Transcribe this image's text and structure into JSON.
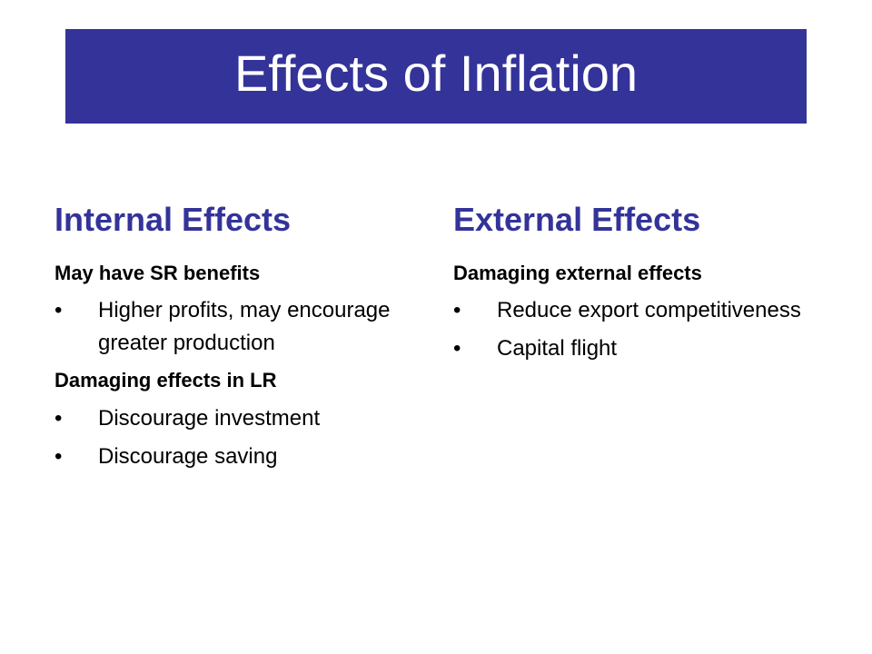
{
  "slide": {
    "title": "Effects of Inflation",
    "colors": {
      "title_bar": "#333399",
      "heading": "#333399",
      "body_text": "#000000"
    }
  },
  "internal": {
    "heading": "Internal Effects",
    "groups": [
      {
        "subheading": "May have SR benefits",
        "bullets": [
          "Higher profits, may encourage greater production"
        ]
      },
      {
        "subheading": "Damaging effects in LR",
        "bullets": [
          "Discourage investment",
          "Discourage saving"
        ]
      }
    ]
  },
  "external": {
    "heading": "External Effects",
    "groups": [
      {
        "subheading": "Damaging external effects",
        "bullets": [
          "Reduce export competitiveness",
          "Capital flight"
        ]
      }
    ]
  },
  "bullet_glyph": "•"
}
